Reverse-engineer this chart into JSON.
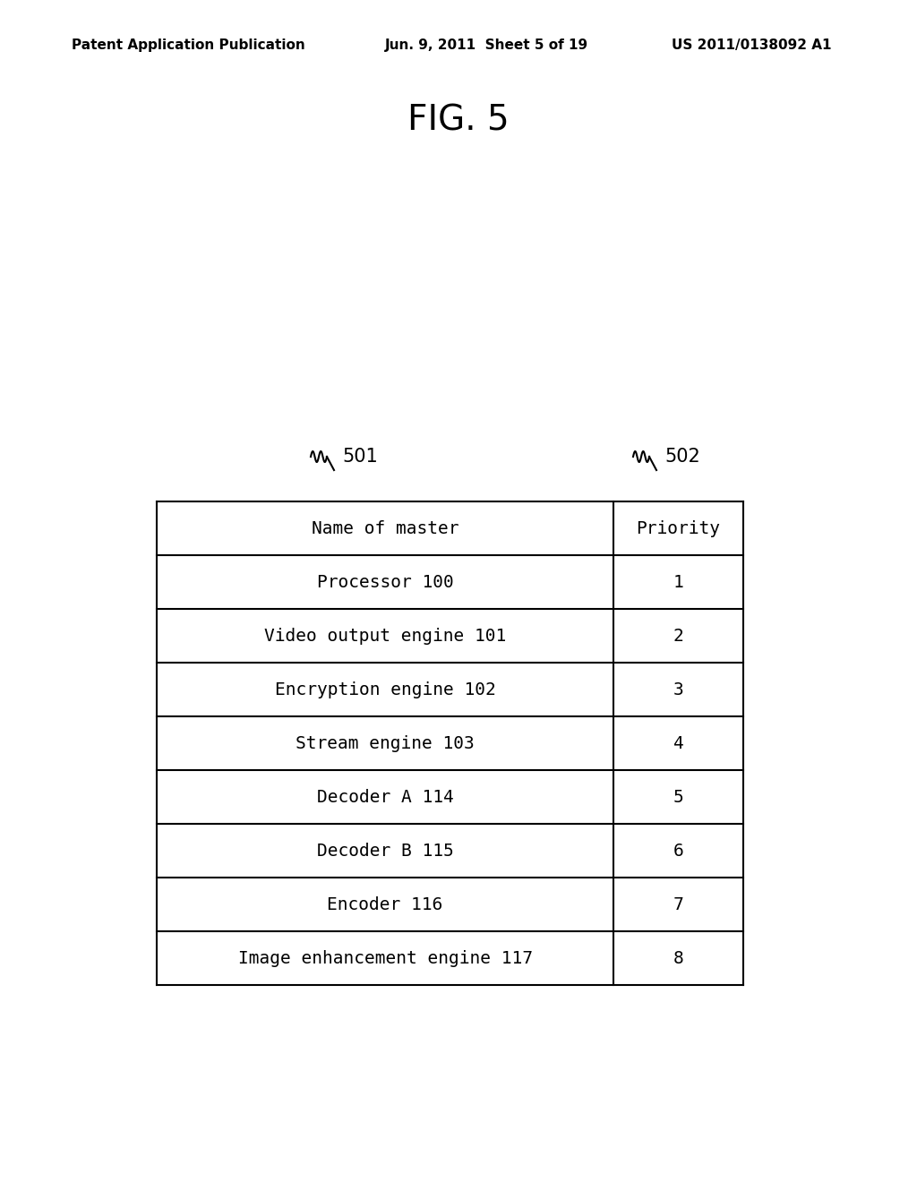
{
  "title": "FIG. 5",
  "header_left": "Patent Application Publication",
  "header_center": "Jun. 9, 2011  Sheet 5 of 19",
  "header_right": "US 2011/0138092 A1",
  "table_col1_header": "Name of master",
  "table_col2_header": "Priority",
  "table_rows": [
    [
      "Processor 100",
      "1"
    ],
    [
      "Video output engine 101",
      "2"
    ],
    [
      "Encryption engine 102",
      "3"
    ],
    [
      "Stream engine 103",
      "4"
    ],
    [
      "Decoder A 114",
      "5"
    ],
    [
      "Decoder B 115",
      "6"
    ],
    [
      "Encoder 116",
      "7"
    ],
    [
      "Image enhancement engine 117",
      "8"
    ]
  ],
  "label_501": "501",
  "label_502": "502",
  "bg_color": "#ffffff",
  "text_color": "#000000",
  "table_border_color": "#000000",
  "font_family": "monospace"
}
